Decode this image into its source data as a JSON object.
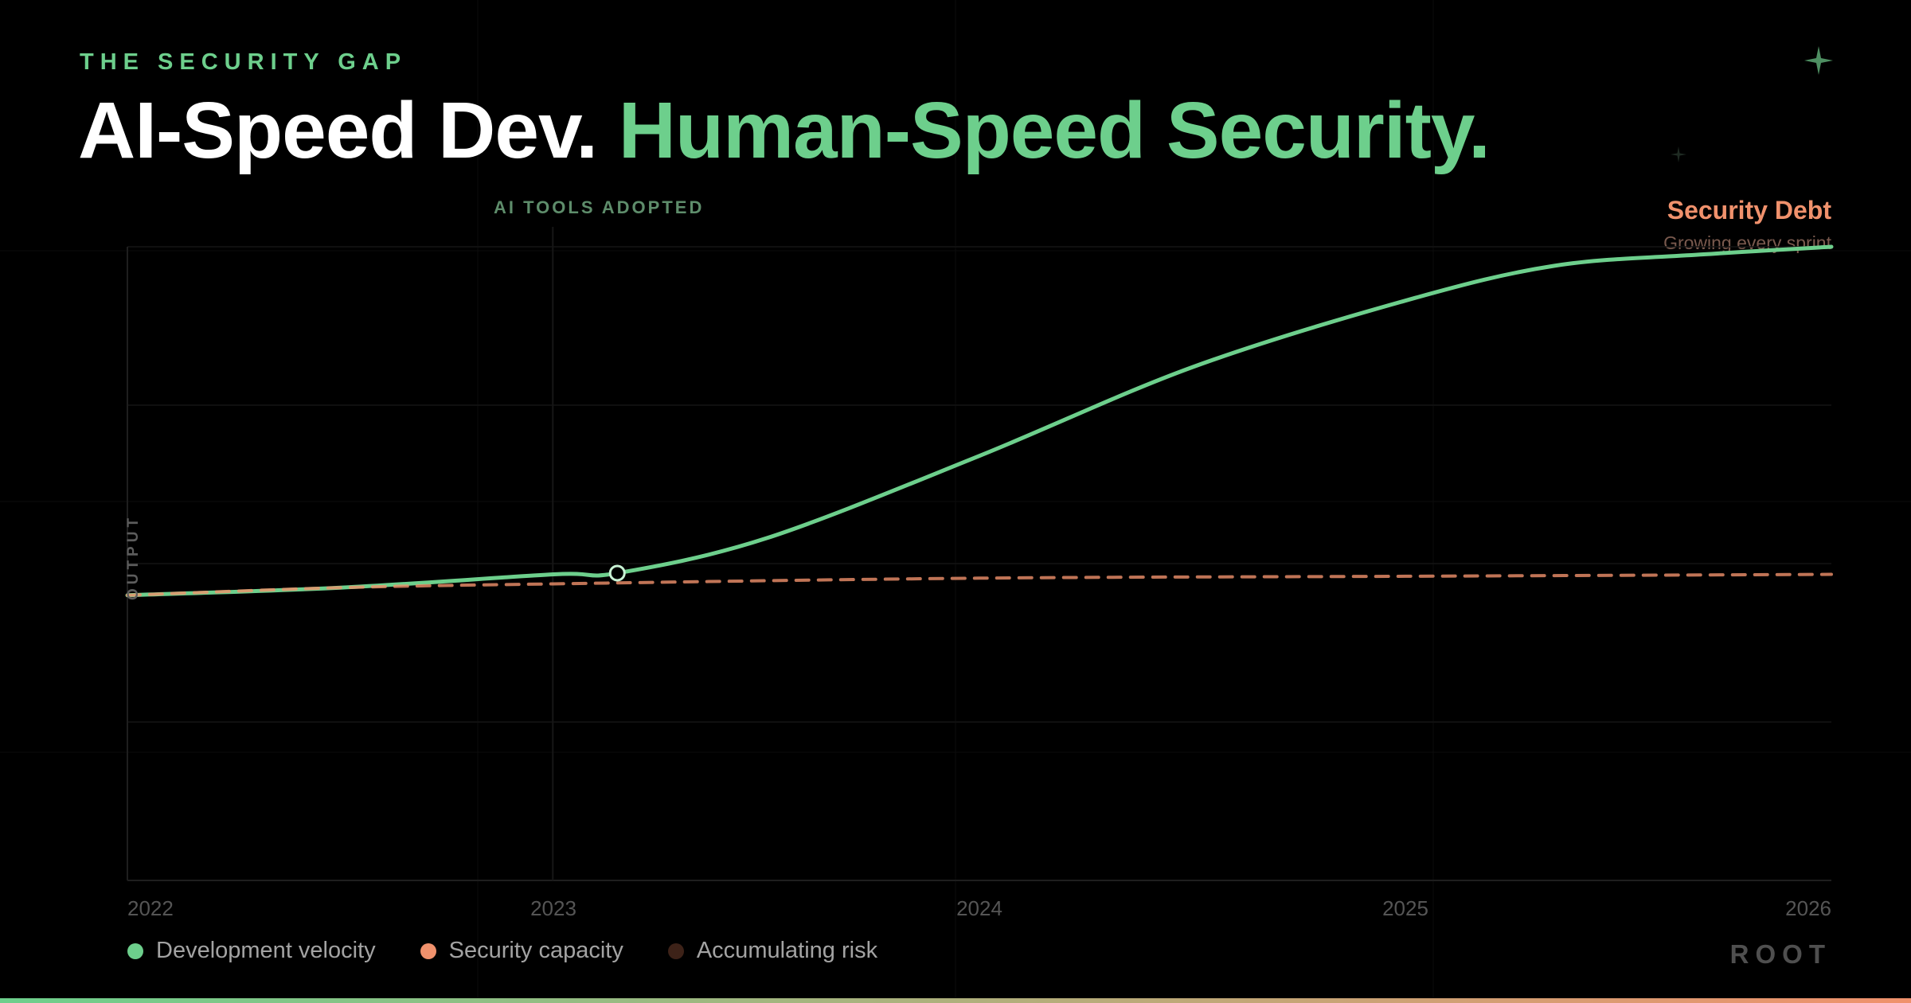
{
  "header": {
    "eyebrow": "THE SECURITY GAP",
    "title_part1": "AI-Speed Dev.",
    "title_part2": "Human-Speed Security."
  },
  "annotations": {
    "marker_label": "AI TOOLS ADOPTED",
    "debt_title": "Security Debt",
    "debt_subtitle": "Growing every sprint"
  },
  "legend": [
    {
      "label": "Development velocity",
      "color": "#6dcf8c"
    },
    {
      "label": "Security capacity",
      "color": "#f0916c"
    },
    {
      "label": "Accumulating risk",
      "color": "#3d2218"
    }
  ],
  "brand": "ROOT",
  "icons": {
    "sparkle": "four-point-star-icon"
  },
  "colors": {
    "background": "#000000",
    "accent_green": "#6dcf8c",
    "accent_orange": "#f0916c",
    "risk_brown": "#3d2218"
  },
  "chart_data": {
    "type": "line",
    "ylabel": "OUTPUT",
    "xlabel": "",
    "x_ticks": [
      "2022",
      "2023",
      "2024",
      "2025",
      "2026"
    ],
    "xlim": [
      2022,
      2026
    ],
    "ylim": [
      0,
      100
    ],
    "grid": true,
    "axis_labels_visible": "x only",
    "series": [
      {
        "name": "Development velocity",
        "style": "solid",
        "color": "#6dcf8c",
        "points": [
          [
            2022.0,
            45
          ],
          [
            2022.5,
            46.2
          ],
          [
            2023.0,
            48.3
          ],
          [
            2023.15,
            48.5
          ],
          [
            2023.5,
            54
          ],
          [
            2024.0,
            67
          ],
          [
            2024.5,
            81
          ],
          [
            2025.0,
            91.5
          ],
          [
            2025.35,
            97
          ],
          [
            2025.7,
            98.8
          ],
          [
            2026.0,
            100
          ]
        ]
      },
      {
        "name": "Security capacity",
        "style": "dashed",
        "color": "#f0916c",
        "points": [
          [
            2022.0,
            45
          ],
          [
            2022.5,
            46.2
          ],
          [
            2023.0,
            46.8
          ],
          [
            2024.0,
            47.7
          ],
          [
            2025.0,
            48
          ],
          [
            2026.0,
            48.3
          ]
        ]
      }
    ],
    "markers": [
      {
        "label": "AI TOOLS ADOPTED",
        "x": 2023.15,
        "series": "Development velocity"
      }
    ],
    "gap_annotation": {
      "label": "Security Debt",
      "note": "Growing every sprint"
    }
  }
}
